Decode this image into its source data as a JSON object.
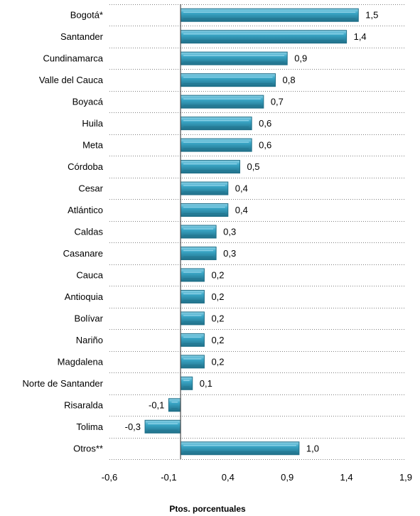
{
  "colors": {
    "bar_fill": "#3aa6c6",
    "bar_light": "#8fd3e8",
    "bar_dark": "#1f6f88",
    "gridline": "#7f7f7f",
    "axis": "#4d4d4d"
  },
  "chart_data": {
    "type": "bar",
    "orientation": "horizontal",
    "categories": [
      "Bogotá*",
      "Santander",
      "Cundinamarca",
      "Valle del Cauca",
      "Boyacá",
      "Huila",
      "Meta",
      "Córdoba",
      "Cesar",
      "Atlántico",
      "Caldas",
      "Casanare",
      "Cauca",
      "Antioquia",
      "Bolívar",
      "Nariño",
      "Magdalena",
      "Norte de Santander",
      "Risaralda",
      "Tolima",
      "Otros**"
    ],
    "values": [
      1.5,
      1.4,
      0.9,
      0.8,
      0.7,
      0.6,
      0.6,
      0.5,
      0.4,
      0.4,
      0.3,
      0.3,
      0.2,
      0.2,
      0.2,
      0.2,
      0.2,
      0.1,
      -0.1,
      -0.3,
      1.0
    ],
    "value_labels": [
      "1,5",
      "1,4",
      "0,9",
      "0,8",
      "0,7",
      "0,6",
      "0,6",
      "0,5",
      "0,4",
      "0,4",
      "0,3",
      "0,3",
      "0,2",
      "0,2",
      "0,2",
      "0,2",
      "0,2",
      "0,1",
      "-0,1",
      "-0,3",
      "1,0"
    ],
    "xlim": [
      -0.6,
      1.9
    ],
    "xticks": [
      -0.6,
      -0.1,
      0.4,
      0.9,
      1.4,
      1.9
    ],
    "xtick_labels": [
      "-0,6",
      "-0,1",
      "0,4",
      "0,9",
      "1,4",
      "1,9"
    ],
    "xlabel": "Ptos. porcentuales",
    "ylabel": "",
    "title": "",
    "grid": "horizontal dotted lines between categories",
    "legend": "none"
  }
}
